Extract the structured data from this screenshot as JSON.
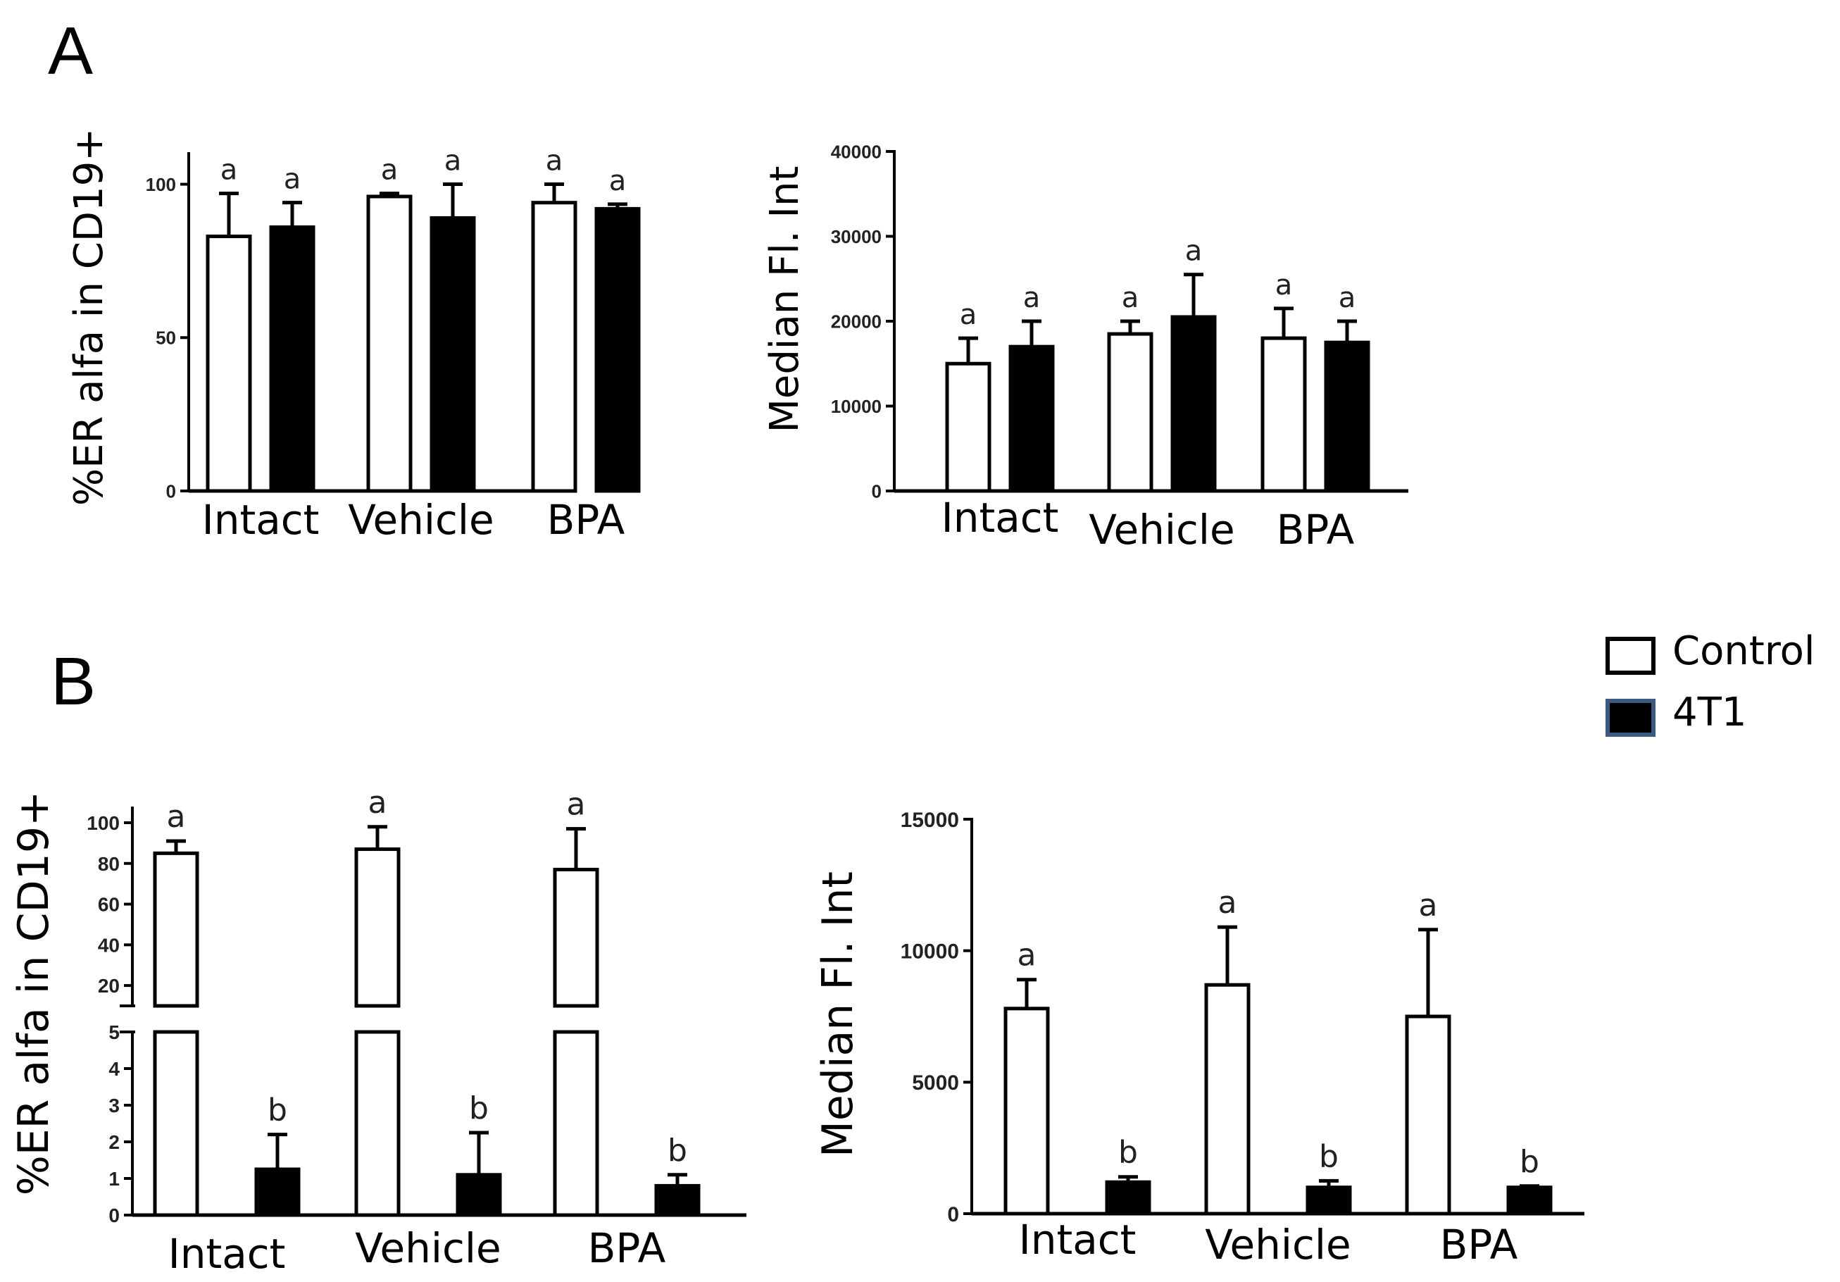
{
  "panels": [
    "A",
    "B"
  ],
  "legend": {
    "items": [
      {
        "label": "Control",
        "fill": "#ffffff",
        "stroke": "#000000"
      },
      {
        "label": "4T1",
        "fill": "#000000",
        "stroke": "#3a5a80"
      }
    ]
  },
  "colors": {
    "control": "#ffffff",
    "tumor": "#000000",
    "axis": "#000000"
  },
  "chart_data": [
    {
      "type": "bar",
      "panel": "A",
      "ylabel": "%ER alfa in CD19+",
      "ylim": [
        0,
        110
      ],
      "yticks": [
        0,
        50,
        100
      ],
      "categories": [
        "Intact",
        "Vehicle",
        "BPA"
      ],
      "series": [
        {
          "name": "Control",
          "values": [
            83,
            96,
            94
          ],
          "errors": [
            14,
            1,
            6
          ],
          "labels": [
            "a",
            "a",
            "a"
          ]
        },
        {
          "name": "4T1",
          "values": [
            86,
            89,
            92
          ],
          "errors": [
            8,
            11,
            1.5
          ],
          "labels": [
            "a",
            "a",
            "a"
          ]
        }
      ]
    },
    {
      "type": "bar",
      "panel": "A",
      "ylabel": "Median Fl. Int",
      "ylim": [
        0,
        40000
      ],
      "yticks": [
        0,
        10000,
        20000,
        30000,
        40000
      ],
      "categories": [
        "Intact",
        "Vehicle",
        "BPA"
      ],
      "series": [
        {
          "name": "Control",
          "values": [
            15000,
            18500,
            18000
          ],
          "errors": [
            3000,
            1500,
            3500
          ],
          "labels": [
            "a",
            "a",
            "a"
          ]
        },
        {
          "name": "4T1",
          "values": [
            17000,
            20500,
            17500
          ],
          "errors": [
            3000,
            5000,
            2500
          ],
          "labels": [
            "a",
            "a",
            "a"
          ]
        }
      ]
    },
    {
      "type": "bar",
      "panel": "B",
      "ylabel": "%ER alfa in CD19+",
      "broken_axis": true,
      "ylim_lower": [
        0,
        5
      ],
      "yticks_lower": [
        0,
        1,
        2,
        3,
        4,
        5
      ],
      "ylim_upper": [
        10,
        100
      ],
      "yticks_upper": [
        20,
        40,
        60,
        80,
        100
      ],
      "categories": [
        "Intact",
        "Vehicle",
        "BPA"
      ],
      "series": [
        {
          "name": "Control",
          "values": [
            85,
            87,
            77
          ],
          "errors": [
            6,
            11,
            20
          ],
          "labels": [
            "a",
            "a",
            "a"
          ]
        },
        {
          "name": "4T1",
          "values": [
            1.25,
            1.1,
            0.8
          ],
          "errors": [
            0.95,
            1.15,
            0.3
          ],
          "labels": [
            "b",
            "b",
            "b"
          ]
        }
      ]
    },
    {
      "type": "bar",
      "panel": "B",
      "ylabel": "Median Fl. Int",
      "ylim": [
        0,
        15000
      ],
      "yticks": [
        0,
        5000,
        10000,
        15000
      ],
      "categories": [
        "Intact",
        "Vehicle",
        "BPA"
      ],
      "series": [
        {
          "name": "Control",
          "values": [
            7800,
            8700,
            7500
          ],
          "errors": [
            1100,
            2200,
            3300
          ],
          "labels": [
            "a",
            "a",
            "a"
          ]
        },
        {
          "name": "4T1",
          "values": [
            1200,
            1000,
            1000
          ],
          "errors": [
            200,
            250,
            50
          ],
          "labels": [
            "b",
            "b",
            "b"
          ]
        }
      ]
    }
  ]
}
